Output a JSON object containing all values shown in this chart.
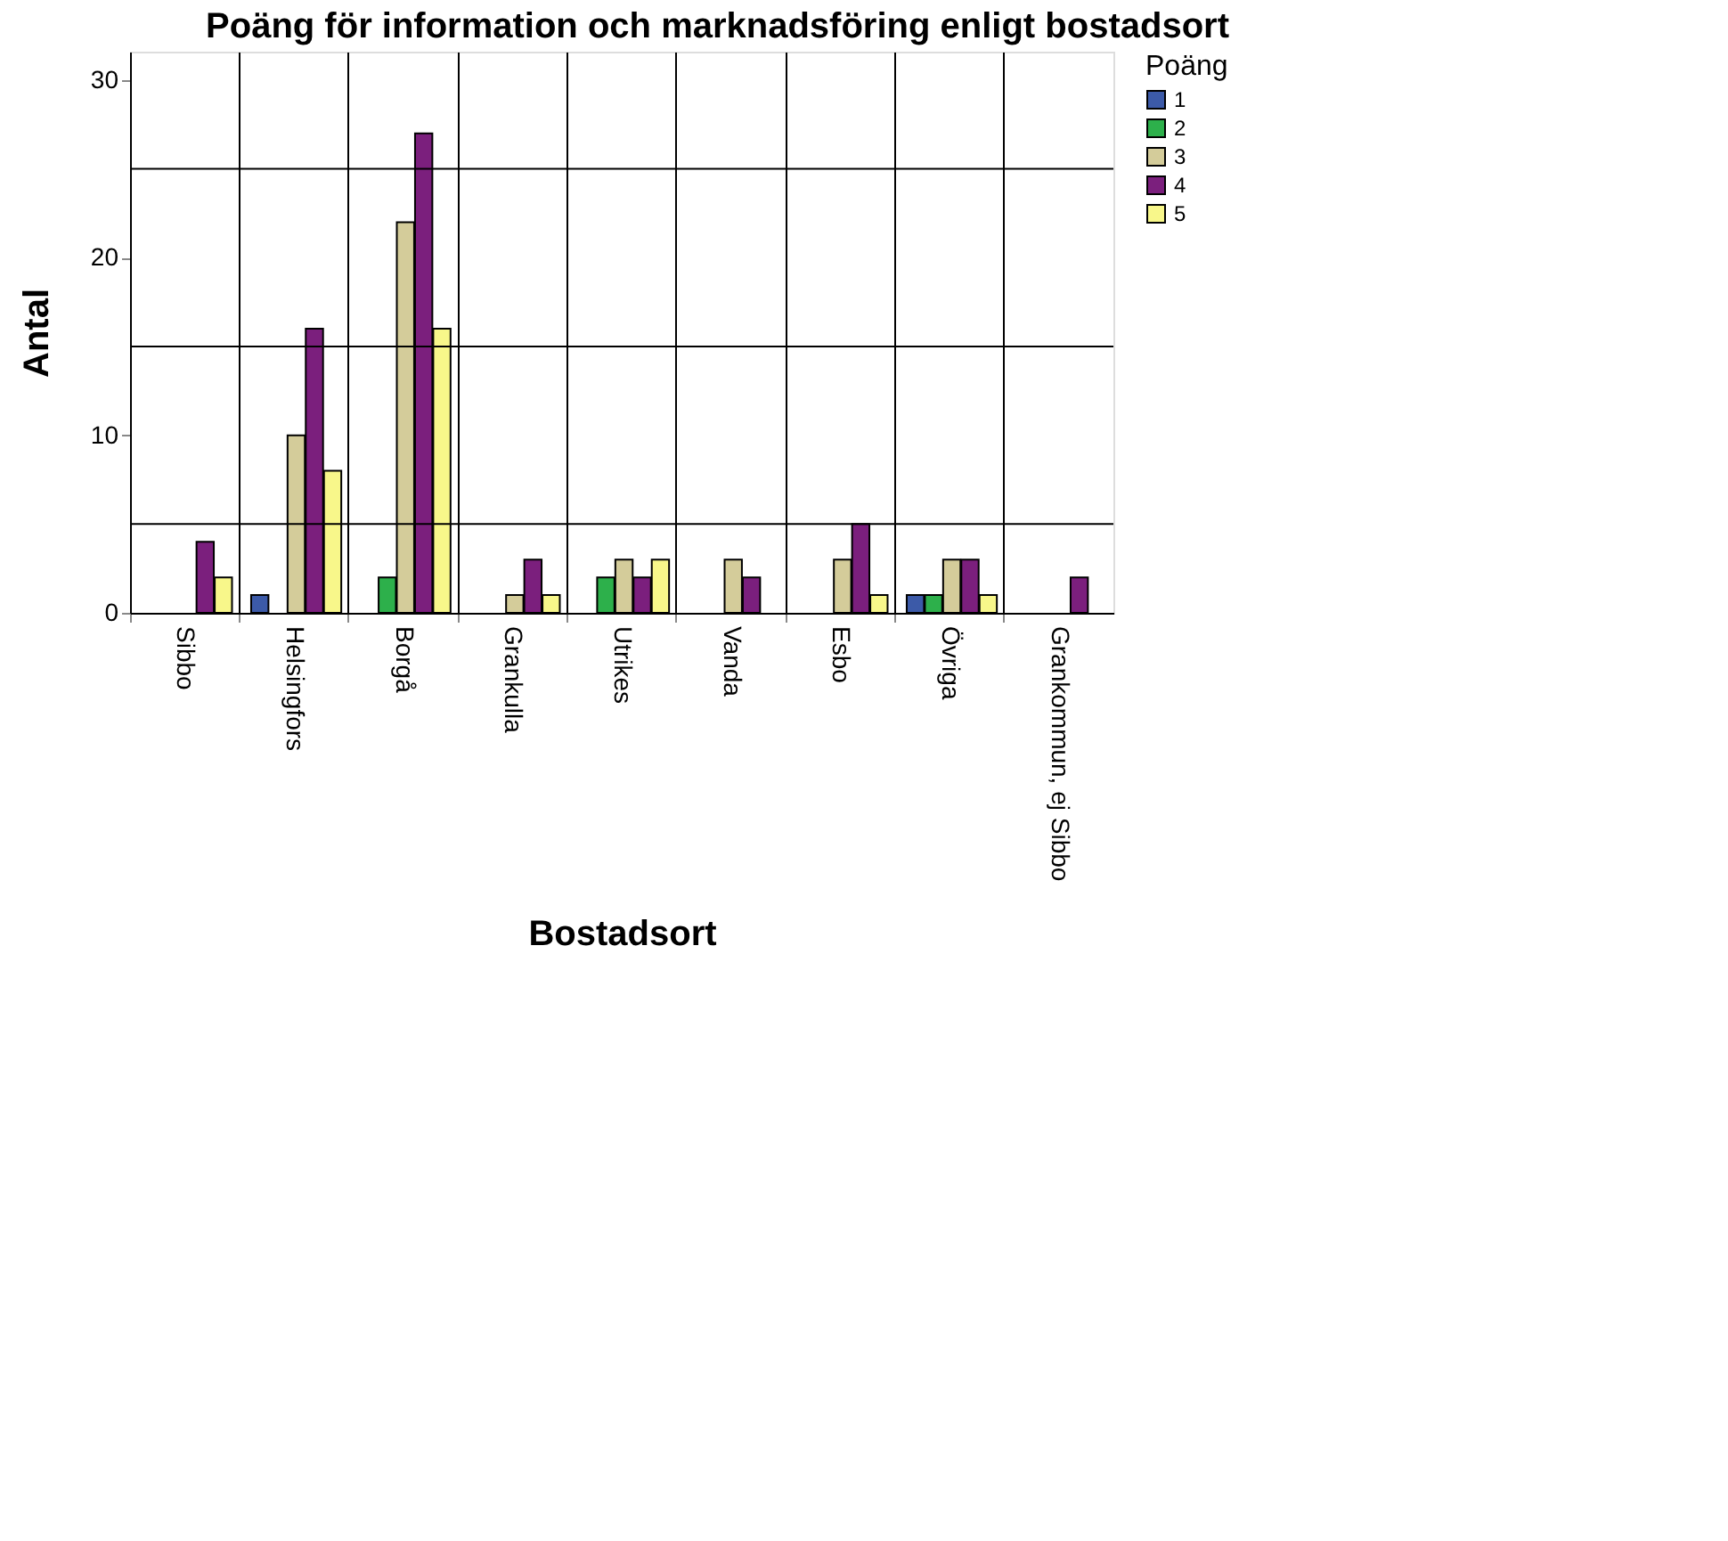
{
  "chart_data": {
    "type": "bar",
    "title": "Poäng för information och marknadsföring enligt bostadsort",
    "xlabel": "Bostadsort",
    "ylabel": "Antal",
    "legend_title": "Poäng",
    "categories": [
      "Sibbo",
      "Helsingfors",
      "Borgå",
      "Grankulla",
      "Utrikes",
      "Vanda",
      "Esbo",
      "Övriga",
      "Grankommun, ej Sibbo"
    ],
    "series": [
      {
        "name": "1",
        "color": "#3c5aa8",
        "values": [
          null,
          1,
          null,
          null,
          null,
          null,
          null,
          1,
          null
        ]
      },
      {
        "name": "2",
        "color": "#2db04b",
        "values": [
          null,
          null,
          2,
          null,
          2,
          null,
          null,
          1,
          null
        ]
      },
      {
        "name": "3",
        "color": "#d4cc9a",
        "values": [
          null,
          10,
          22,
          1,
          3,
          3,
          3,
          3,
          null
        ]
      },
      {
        "name": "4",
        "color": "#7b1f7d",
        "values": [
          4,
          16,
          27,
          3,
          2,
          2,
          5,
          3,
          2
        ]
      },
      {
        "name": "5",
        "color": "#f8f78a",
        "values": [
          2,
          8,
          16,
          1,
          3,
          null,
          1,
          1,
          null
        ]
      }
    ],
    "ylim": [
      0,
      31.6
    ],
    "yticks": [
      0,
      10,
      20,
      30
    ],
    "grid": true,
    "legend": "top right"
  }
}
